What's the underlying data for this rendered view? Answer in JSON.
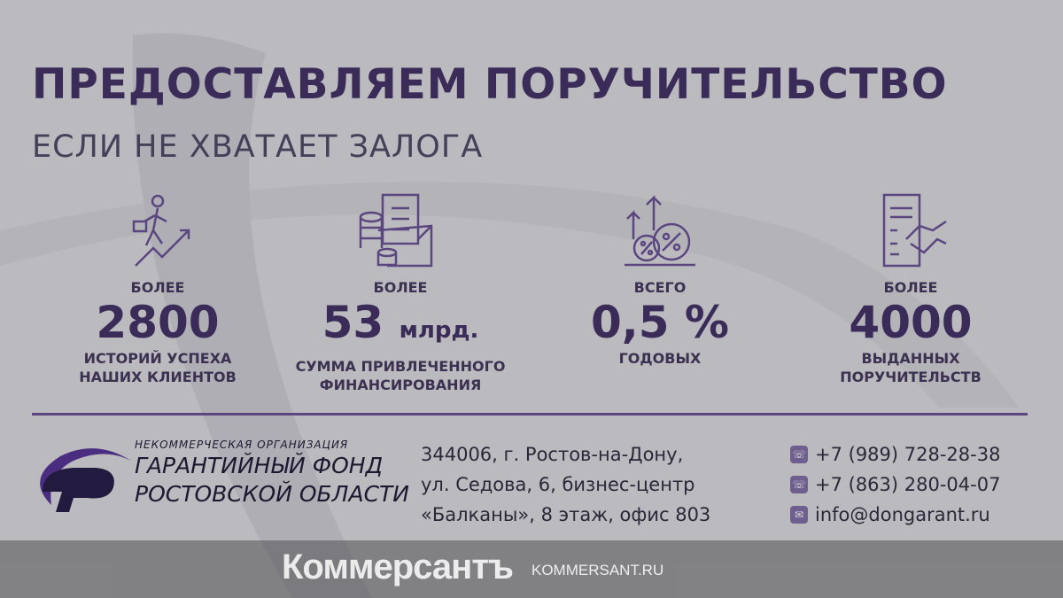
{
  "header": {
    "title": "ПРЕДОСТАВЛЯЕМ ПОРУЧИТЕЛЬСТВО",
    "subtitle": "ЕСЛИ НЕ ХВАТАЕТ ЗАЛОГА"
  },
  "stats": [
    {
      "icon": "businessman-growth-icon",
      "pre": "БОЛЕЕ",
      "value": "2800",
      "unit": "",
      "desc1": "ИСТОРИЙ УСПЕХА",
      "desc2": "НАШИХ КЛИЕНТОВ"
    },
    {
      "icon": "coins-envelope-icon",
      "pre": "БОЛЕЕ",
      "value": "53",
      "unit": "млрд.",
      "desc1": "СУММА ПРИВЛЕЧЕННОГО",
      "desc2": "ФИНАНСИРОВАНИЯ"
    },
    {
      "icon": "percent-growth-icon",
      "pre": "ВСЕГО",
      "value": "0,5 %",
      "unit": "",
      "desc1": "ГОДОВЫХ",
      "desc2": ""
    },
    {
      "icon": "document-handshake-icon",
      "pre": "БОЛЕЕ",
      "value": "4000",
      "unit": "",
      "desc1": "ВЫДАННЫХ",
      "desc2": "ПОРУЧИТЕЛЬСТВ"
    }
  ],
  "org": {
    "line1": "НЕКОММЕРЧЕСКАЯ ОРГАНИЗАЦИЯ",
    "line2": "ГАРАНТИЙНЫЙ ФОНД",
    "line3": "РОСТОВСКОЙ ОБЛАСТИ"
  },
  "address": [
    "344006, г. Ростов-на-Дону,",
    "ул. Седова, 6, бизнес-центр",
    "«Балканы», 8 этаж, офис 803"
  ],
  "contacts": [
    {
      "icon": "phone-icon",
      "text": "+7 (989) 728-28-38"
    },
    {
      "icon": "phone-icon",
      "text": "+7 (863) 280-04-07"
    },
    {
      "icon": "mail-icon",
      "text": "info@dongarant.ru"
    }
  ],
  "watermark": {
    "name": "Коммерсантъ",
    "url": "KOMMERSANT.RU"
  },
  "colors": {
    "accent": "#3a2b58",
    "background": "#bbbbbf"
  }
}
